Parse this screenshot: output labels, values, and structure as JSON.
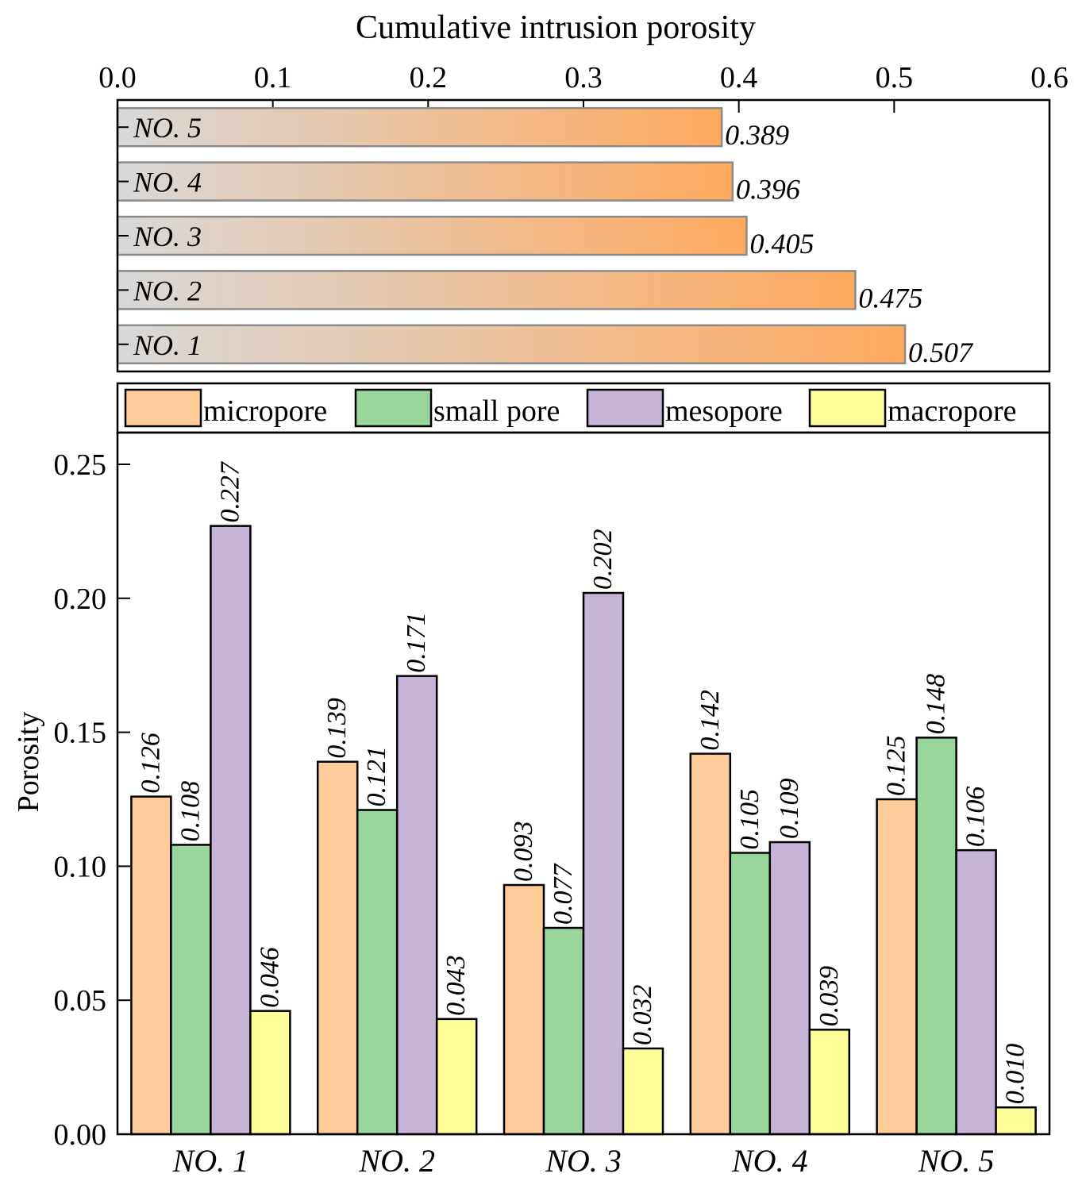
{
  "chart_data": [
    {
      "type": "bar",
      "orientation": "horizontal",
      "title": "Cumulative intrusion porosity",
      "categories": [
        "NO. 5",
        "NO. 4",
        "NO. 3",
        "NO. 2",
        "NO. 1"
      ],
      "values": [
        0.389,
        0.396,
        0.405,
        0.475,
        0.507
      ],
      "value_labels": [
        "0.389",
        "0.396",
        "0.405",
        "0.475",
        "0.507"
      ],
      "xlim": [
        0.0,
        0.6
      ],
      "x_ticks": [
        "0.0",
        "0.1",
        "0.2",
        "0.3",
        "0.4",
        "0.5",
        "0.6"
      ],
      "x_tick_values": [
        0.0,
        0.1,
        0.2,
        0.3,
        0.4,
        0.5,
        0.6
      ],
      "axis_position": "top",
      "bar_gradient": [
        "#d9d9d9",
        "#ffa95e"
      ],
      "bar_edge": "#8a8a8a",
      "grid": false
    },
    {
      "type": "bar",
      "orientation": "vertical",
      "ylabel": "Porosity",
      "categories": [
        "NO. 1",
        "NO. 2",
        "NO. 3",
        "NO. 4",
        "NO. 5"
      ],
      "series": [
        {
          "name": "micropore",
          "color": "#ffcc99",
          "values": [
            0.126,
            0.139,
            0.093,
            0.142,
            0.125
          ],
          "labels": [
            "0.126",
            "0.139",
            "0.093",
            "0.142",
            "0.125"
          ]
        },
        {
          "name": "small pore",
          "color": "#99d699",
          "values": [
            0.108,
            0.121,
            0.077,
            0.105,
            0.148
          ],
          "labels": [
            "0.108",
            "0.121",
            "0.077",
            "0.105",
            "0.148"
          ]
        },
        {
          "name": "mesopore",
          "color": "#c6b4d8",
          "values": [
            0.227,
            0.171,
            0.202,
            0.109,
            0.106
          ],
          "labels": [
            "0.227",
            "0.171",
            "0.202",
            "0.109",
            "0.106"
          ]
        },
        {
          "name": "macropore",
          "color": "#ffff99",
          "values": [
            0.046,
            0.043,
            0.032,
            0.039,
            0.01
          ],
          "labels": [
            "0.046",
            "0.043",
            "0.032",
            "0.039",
            "0.010"
          ]
        }
      ],
      "ylim": [
        0.0,
        0.26
      ],
      "y_ticks": [
        "0.00",
        "0.05",
        "0.10",
        "0.15",
        "0.20",
        "0.25"
      ],
      "y_tick_values": [
        0.0,
        0.05,
        0.1,
        0.15,
        0.2,
        0.25
      ],
      "legend_position": "top",
      "grid": false
    }
  ]
}
